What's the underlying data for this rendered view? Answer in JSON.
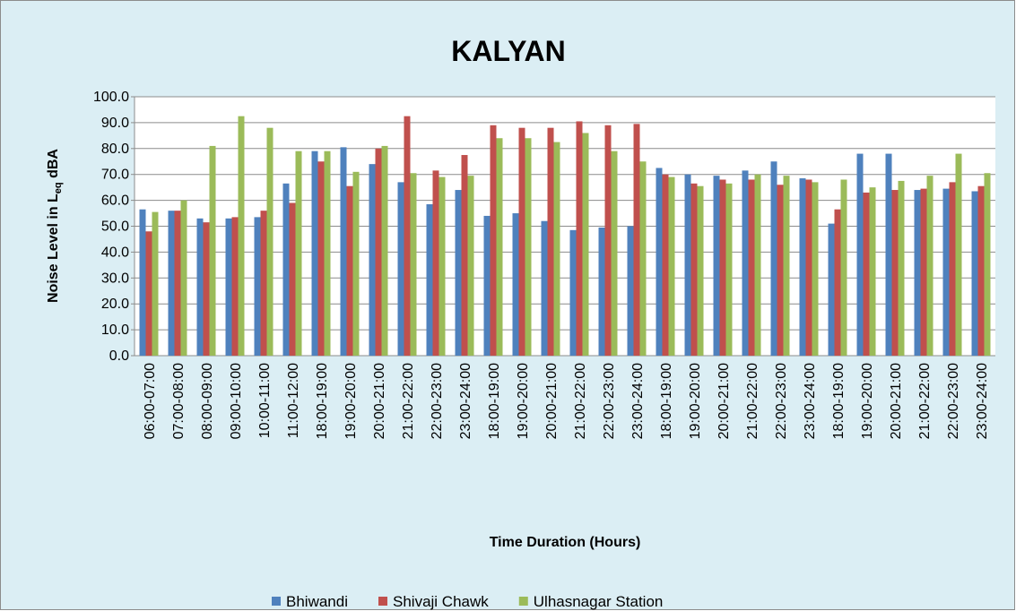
{
  "chart_data": {
    "type": "bar",
    "title": "KALYAN",
    "y_label": [
      "Noise Level in L",
      "eq",
      " dBA"
    ],
    "x_label": "Time Duration (Hours)",
    "categories": [
      "06:00-07:00",
      "07:00-08:00",
      "08:00-09:00",
      "09:00-10:00",
      "10:00-11:00",
      "11:00-12:00",
      "18:00-19:00",
      "19:00-20:00",
      "20:00-21:00",
      "21:00-22:00",
      "22:00-23:00",
      "23:00-24:00",
      "18:00-19:00",
      "19:00-20:00",
      "20:00-21:00",
      "21:00-22:00",
      "22:00-23:00",
      "23:00-24:00",
      "18:00-19:00",
      "19:00-20:00",
      "20:00-21:00",
      "21:00-22:00",
      "22:00-23:00",
      "23:00-24:00",
      "18:00-19:00",
      "19:00-20:00",
      "20:00-21:00",
      "21:00-22:00",
      "22:00-23:00",
      "23:00-24:00"
    ],
    "series": [
      {
        "name": "Bhiwandi",
        "color": "#4f81bd",
        "values": [
          56.5,
          56,
          53,
          53,
          53.5,
          66.5,
          79,
          80.5,
          74,
          67,
          58.5,
          64,
          54,
          55,
          52,
          48.5,
          49.5,
          50,
          72.5,
          70,
          69.5,
          71.5,
          75,
          68.5,
          51,
          78,
          78,
          64,
          64.5,
          63.5
        ]
      },
      {
        "name": "Shivaji Chawk",
        "color": "#c0504d",
        "values": [
          48,
          56,
          51.5,
          53.5,
          56,
          59,
          75,
          65.5,
          80,
          92.5,
          71.5,
          77.5,
          89,
          88,
          88,
          90.5,
          89,
          89.5,
          70,
          66.5,
          68,
          68,
          66,
          68,
          56.5,
          63,
          64,
          64.5,
          67,
          65.5
        ]
      },
      {
        "name": "Ulhasnagar Station",
        "color": "#9bbb59",
        "values": [
          55.5,
          60,
          81,
          92.5,
          88,
          79,
          79,
          71,
          81,
          70.5,
          69,
          69.5,
          84,
          84,
          82.5,
          86,
          79,
          75,
          69,
          65.5,
          66.5,
          70,
          69.5,
          67,
          68,
          65,
          67.5,
          69.5,
          78,
          70.5
        ]
      }
    ],
    "ylim": [
      0,
      100
    ],
    "yticks": [
      {
        "value": 0,
        "label": "0.0"
      },
      {
        "value": 10,
        "label": "10.0"
      },
      {
        "value": 20,
        "label": "20.0"
      },
      {
        "value": 30,
        "label": "30.0"
      },
      {
        "value": 40,
        "label": "40.0"
      },
      {
        "value": 50,
        "label": "50.0"
      },
      {
        "value": 60,
        "label": "60.0"
      },
      {
        "value": 70,
        "label": "70.0"
      },
      {
        "value": 80,
        "label": "80.0"
      },
      {
        "value": 90,
        "label": "90.0"
      },
      {
        "value": 100,
        "label": "100.0"
      }
    ],
    "grid": true,
    "legend": "bottom"
  }
}
